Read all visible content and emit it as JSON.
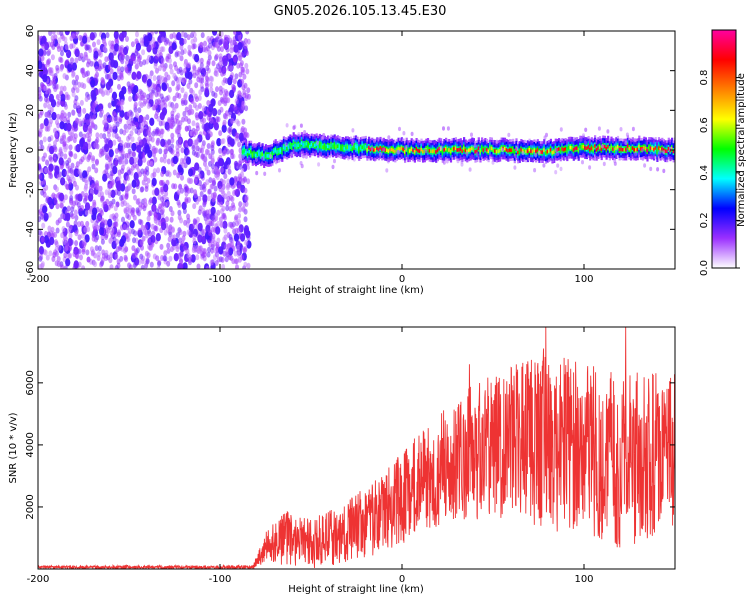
{
  "chart_data": [
    {
      "type": "heatmap",
      "title": "GN05.2026.105.13.45.E30",
      "xlabel": "Height of straight line (km)",
      "ylabel": "Frequency (Hz)",
      "xlim": [
        -200,
        150
      ],
      "ylim": [
        -60,
        60
      ],
      "xticks": [
        -200,
        -100,
        0,
        100
      ],
      "yticks": [
        -60,
        -40,
        -20,
        0,
        20,
        40,
        60
      ],
      "noise_region_x": [
        -200,
        -88
      ],
      "signal_band": {
        "x_start": -88,
        "x_end": 150,
        "center_freq_hz": [
          {
            "x": -88,
            "f": -1
          },
          {
            "x": -75,
            "f": -3
          },
          {
            "x": -60,
            "f": 3
          },
          {
            "x": -45,
            "f": 2
          },
          {
            "x": -30,
            "f": 1
          },
          {
            "x": 0,
            "f": 0
          },
          {
            "x": 50,
            "f": 0
          },
          {
            "x": 75,
            "f": -1
          },
          {
            "x": 100,
            "f": 1
          },
          {
            "x": 125,
            "f": 1
          },
          {
            "x": 150,
            "f": 0
          }
        ]
      },
      "colorbar": {
        "label": "Normalized spectral amplitude",
        "ticks": [
          "0.0",
          "0.2",
          "0.4",
          "0.6",
          "0.8"
        ],
        "range": [
          0,
          1
        ],
        "colors": [
          "#ffffff",
          "#9b30ff",
          "#0000ff",
          "#00ffff",
          "#00ff00",
          "#ffff00",
          "#ff8000",
          "#ff0000",
          "#ff00a0"
        ]
      }
    },
    {
      "type": "line",
      "title": "",
      "xlabel": "Height of straight line (km)",
      "ylabel": "SNR (10 * v/v)",
      "xlim": [
        -200,
        150
      ],
      "ylim": [
        0,
        7800
      ],
      "xticks": [
        -200,
        -100,
        0,
        100
      ],
      "yticks": [
        2000,
        4000,
        6000
      ],
      "series": [
        {
          "name": "SNR",
          "color": "#ee3333",
          "envelope": [
            {
              "x": -200,
              "mean": 60,
              "amp": 50
            },
            {
              "x": -82,
              "mean": 60,
              "amp": 60
            },
            {
              "x": -75,
              "mean": 700,
              "amp": 500
            },
            {
              "x": -65,
              "mean": 1000,
              "amp": 900
            },
            {
              "x": -50,
              "mean": 800,
              "amp": 800
            },
            {
              "x": -30,
              "mean": 1200,
              "amp": 1000
            },
            {
              "x": -10,
              "mean": 1800,
              "amp": 1300
            },
            {
              "x": 0,
              "mean": 2300,
              "amp": 1500
            },
            {
              "x": 20,
              "mean": 3200,
              "amp": 1800
            },
            {
              "x": 40,
              "mean": 3800,
              "amp": 2200
            },
            {
              "x": 60,
              "mean": 4000,
              "amp": 2500
            },
            {
              "x": 80,
              "mean": 4200,
              "amp": 3000
            },
            {
              "x": 100,
              "mean": 3900,
              "amp": 2700
            },
            {
              "x": 120,
              "mean": 3500,
              "amp": 2900
            },
            {
              "x": 150,
              "mean": 3800,
              "amp": 2500
            }
          ],
          "peaks": [
            {
              "x": 79,
              "y": 7800
            },
            {
              "x": 123,
              "y": 7800
            },
            {
              "x": 37,
              "y": 6600
            },
            {
              "x": 75,
              "y": 6300
            }
          ]
        }
      ]
    }
  ]
}
